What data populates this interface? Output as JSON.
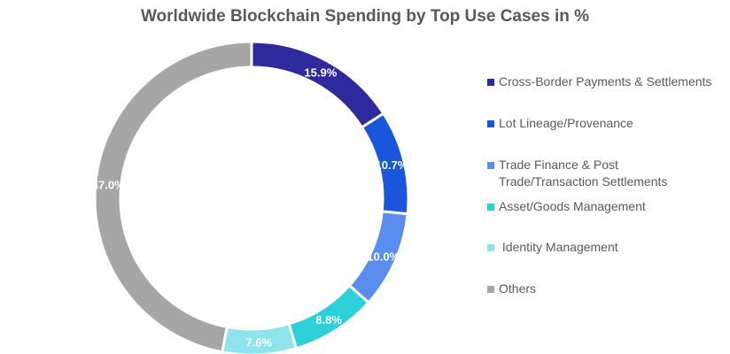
{
  "chart_data": {
    "type": "pie",
    "donut": true,
    "title": "Worldwide Blockchain Spending by Top Use Cases in %",
    "start_angle": "top, clockwise",
    "legend_position": "right",
    "slices": [
      {
        "label": "Cross-Border Payments & Settlements",
        "value": 15.9,
        "data_label": "15.9%",
        "color": "#2E2A9E"
      },
      {
        "label": "Lot Lineage/Provenance",
        "value": 10.7,
        "data_label": "10.7%",
        "color": "#1A56DB"
      },
      {
        "label": "Trade Finance & Post Trade/Transaction Settlements",
        "legend_lines": [
          "Trade Finance & Post",
          "Trade/Transaction Settlements"
        ],
        "value": 10.0,
        "data_label": "10.0%",
        "color": "#5B8DEF"
      },
      {
        "label": "Asset/Goods Management",
        "value": 8.8,
        "data_label": "8.8%",
        "color": "#2BD0D8"
      },
      {
        "label": " Identity Management",
        "value": 7.6,
        "data_label": "7.6%",
        "color": "#8FE3EC"
      },
      {
        "label": "Others",
        "value": 47.0,
        "data_label": "47.0%",
        "color": "#A6A6A6"
      }
    ]
  }
}
